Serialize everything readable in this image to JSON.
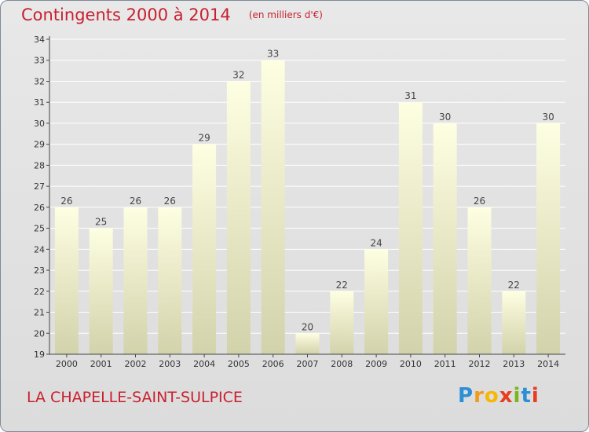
{
  "header": {
    "title": "Contingents 2000 à 2014",
    "subtitle": "(en milliers d'€)"
  },
  "footer": {
    "place": "LA CHAPELLE-SAINT-SULPICE",
    "logo": "Proxiti"
  },
  "colors": {
    "title": "#c8202f",
    "bar_top": "#fefee2",
    "bar_bottom": "#d2d2ab",
    "axis": "#444444",
    "grid": "#ffffff"
  },
  "chart_data": {
    "type": "bar",
    "title": "Contingents 2000 à 2014",
    "subtitle": "(en milliers d'€)",
    "categories": [
      "2000",
      "2001",
      "2002",
      "2003",
      "2004",
      "2005",
      "2006",
      "2007",
      "2008",
      "2009",
      "2010",
      "2011",
      "2012",
      "2013",
      "2014"
    ],
    "values": [
      26,
      25,
      26,
      26,
      29,
      32,
      33,
      20,
      22,
      24,
      31,
      30,
      26,
      22,
      30
    ],
    "ylim": [
      19,
      34
    ],
    "yticks": [
      19,
      20,
      21,
      22,
      23,
      24,
      25,
      26,
      27,
      28,
      29,
      30,
      31,
      32,
      33,
      34
    ],
    "grid": true,
    "data_labels": true,
    "xlabel": "",
    "ylabel": ""
  }
}
